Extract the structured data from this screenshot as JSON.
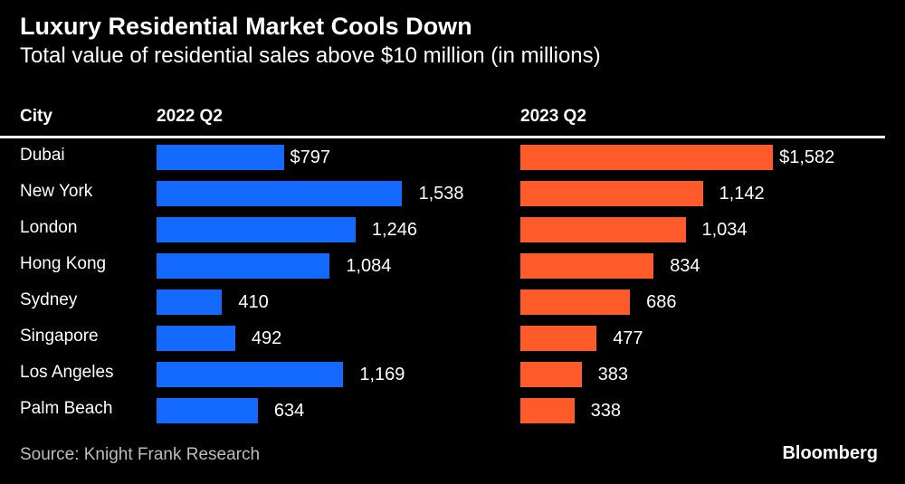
{
  "title": "Luxury Residential Market Cools Down",
  "subtitle": "Total value of residential sales above $10 million (in millions)",
  "source": "Source: Knight Frank Research",
  "logo": "Bloomberg",
  "chart_data": {
    "type": "bar",
    "orientation": "horizontal",
    "category_header": "City",
    "categories": [
      "Dubai",
      "New York",
      "London",
      "Hong Kong",
      "Sydney",
      "Singapore",
      "Los Angeles",
      "Palm Beach"
    ],
    "currency_prefix": "$",
    "series": [
      {
        "name": "2022 Q2",
        "color": "#1469ff",
        "values": [
          797,
          1538,
          1246,
          1084,
          410,
          492,
          1169,
          634
        ]
      },
      {
        "name": "2023 Q2",
        "color": "#ff5a2a",
        "values": [
          1582,
          1142,
          1034,
          834,
          686,
          477,
          383,
          338
        ]
      }
    ]
  }
}
